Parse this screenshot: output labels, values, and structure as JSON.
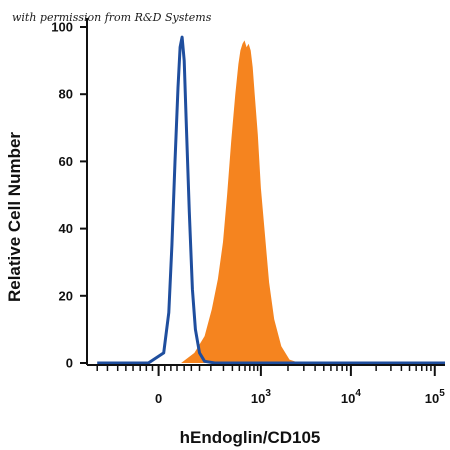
{
  "watermark": "with permission from R&D Systems",
  "chart_data": {
    "type": "area",
    "title": "",
    "xlabel": "hEndoglin/CD105",
    "ylabel": "Relative Cell Number",
    "xscale": "biexponential",
    "xlim": [
      -0.7,
      2.8
    ],
    "ylim": [
      0,
      100
    ],
    "y_ticks": [
      0,
      20,
      40,
      60,
      80,
      100
    ],
    "x_ticks": [
      {
        "value": 0,
        "base": "0",
        "exp": ""
      },
      {
        "value": 1,
        "base": "10",
        "exp": "3"
      },
      {
        "value": 1.88,
        "base": "10",
        "exp": "4"
      },
      {
        "value": 2.7,
        "base": "10",
        "exp": "5"
      }
    ],
    "grid": false,
    "legend": "none",
    "series": [
      {
        "style": "filled",
        "color": "#f5841f",
        "x": [
          0.22,
          0.35,
          0.45,
          0.52,
          0.58,
          0.63,
          0.67,
          0.71,
          0.75,
          0.78,
          0.8,
          0.82,
          0.84,
          0.86,
          0.88,
          0.9,
          0.92,
          0.94,
          0.97,
          1.0,
          1.04,
          1.08,
          1.13,
          1.2,
          1.28,
          1.38
        ],
        "y": [
          0,
          3,
          8,
          16,
          25,
          36,
          50,
          66,
          80,
          89,
          93,
          95,
          96,
          94,
          95,
          93,
          88,
          80,
          68,
          52,
          38,
          24,
          13,
          5,
          1,
          0
        ]
      },
      {
        "style": "line",
        "color": "#1f4e9e",
        "x": [
          -0.6,
          -0.1,
          0.05,
          0.1,
          0.13,
          0.16,
          0.19,
          0.21,
          0.23,
          0.25,
          0.27,
          0.3,
          0.33,
          0.36,
          0.4,
          0.45,
          0.55,
          2.8
        ],
        "y": [
          0,
          0,
          3,
          15,
          35,
          60,
          82,
          94,
          97,
          90,
          72,
          45,
          22,
          10,
          3,
          0.5,
          0,
          0
        ]
      }
    ]
  }
}
